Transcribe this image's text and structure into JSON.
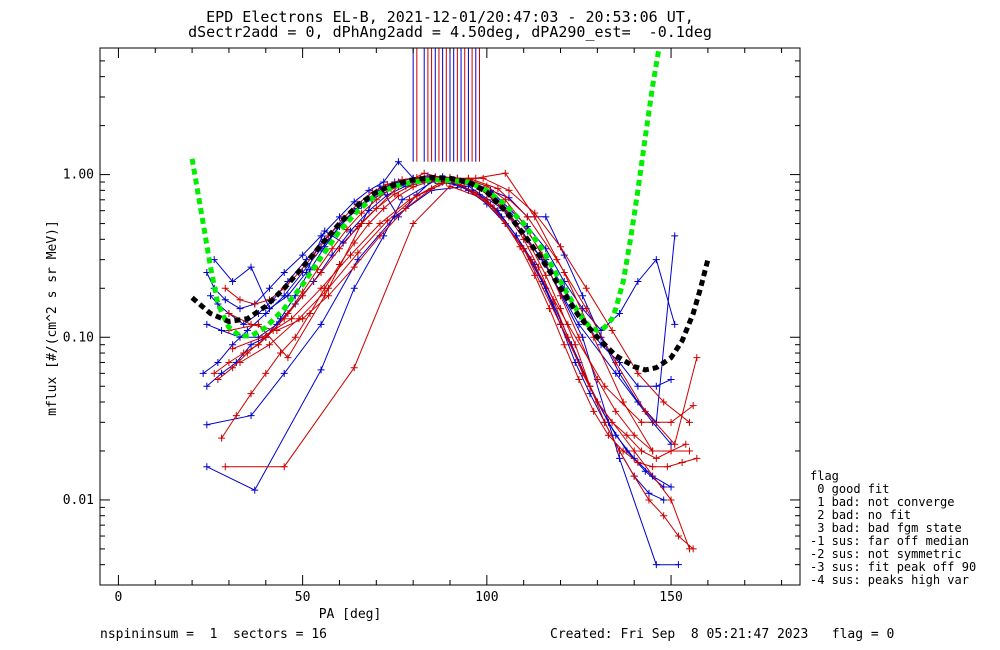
{
  "chart_data": {
    "type": "line",
    "title_lines": [
      "EPD Electrons EL-B, 2021-12-01/20:47:03 - 20:53:06 UT,",
      "dSectr2add = 0, dPhAng2add = 4.50deg, dPA290_est=  -0.1deg"
    ],
    "xlabel": "PA [deg]",
    "ylabel": "mflux [#/(cm^2 s sr MeV)]",
    "xlim": [
      -5,
      185
    ],
    "ylim": [
      0.003,
      6
    ],
    "yscale": "log",
    "x_ticks": [
      0,
      50,
      100,
      150
    ],
    "x_tick_labels": [
      "0",
      "50",
      "100",
      "150"
    ],
    "y_ticks": [
      0.01,
      0.1,
      1.0
    ],
    "y_tick_labels": [
      "0.01",
      "0.10",
      "1.00"
    ],
    "grid": false,
    "colors": {
      "blue": "#0000cc",
      "red": "#cc0000",
      "green": "#00ee00",
      "black": "#000000"
    },
    "vertical_markers": {
      "ymin": 1.2,
      "blue_x": [
        80,
        83,
        86,
        88,
        90,
        91,
        93,
        95,
        97
      ],
      "red_x": [
        81,
        84,
        85,
        87,
        89,
        92,
        94,
        96,
        98
      ]
    },
    "fit_curves": [
      {
        "color": "green",
        "x": [
          20,
          23,
          25,
          27,
          30,
          33,
          36,
          40,
          45,
          50,
          55,
          60,
          65,
          70,
          75,
          80,
          85,
          90,
          95,
          100,
          105,
          110,
          115,
          120,
          125,
          128,
          130,
          132,
          134,
          135,
          137,
          139,
          141,
          143,
          145,
          147
        ],
        "y": [
          1.25,
          0.5,
          0.27,
          0.16,
          0.115,
          0.102,
          0.102,
          0.115,
          0.15,
          0.21,
          0.31,
          0.45,
          0.6,
          0.75,
          0.85,
          0.9,
          0.93,
          0.92,
          0.9,
          0.8,
          0.65,
          0.5,
          0.35,
          0.22,
          0.14,
          0.115,
          0.11,
          0.115,
          0.13,
          0.15,
          0.22,
          0.4,
          0.8,
          1.7,
          3.5,
          6.5
        ]
      },
      {
        "color": "black",
        "x": [
          20,
          25,
          30,
          35,
          40,
          45,
          50,
          55,
          60,
          65,
          70,
          75,
          80,
          85,
          90,
          95,
          100,
          105,
          110,
          115,
          120,
          125,
          130,
          135,
          140,
          143,
          146,
          150,
          153,
          156,
          158,
          160
        ],
        "y": [
          0.175,
          0.14,
          0.125,
          0.13,
          0.155,
          0.2,
          0.27,
          0.37,
          0.5,
          0.65,
          0.78,
          0.87,
          0.93,
          0.96,
          0.95,
          0.9,
          0.78,
          0.6,
          0.43,
          0.3,
          0.2,
          0.135,
          0.1,
          0.077,
          0.066,
          0.063,
          0.065,
          0.075,
          0.095,
          0.14,
          0.2,
          0.3
        ]
      }
    ],
    "series": [
      {
        "color": "blue",
        "x": [
          24,
          26,
          29,
          33,
          37,
          41,
          45,
          50,
          55,
          60,
          64,
          68,
          72,
          76,
          80,
          84,
          88,
          92,
          96,
          101,
          106,
          111,
          116,
          121,
          126,
          131,
          136,
          141,
          146,
          151
        ],
        "y": [
          0.25,
          0.2,
          0.17,
          0.15,
          0.16,
          0.2,
          0.25,
          0.32,
          0.42,
          0.55,
          0.68,
          0.8,
          0.9,
          1.2,
          0.95,
          0.98,
          0.97,
          0.95,
          0.9,
          0.8,
          0.62,
          0.48,
          0.35,
          0.22,
          0.15,
          0.11,
          0.14,
          0.22,
          0.3,
          0.12
        ]
      },
      {
        "color": "blue",
        "x": [
          25,
          27,
          30,
          34,
          38,
          42,
          46,
          51,
          56,
          61,
          66,
          71,
          76,
          81,
          86,
          91,
          96,
          101,
          106,
          111,
          116,
          121,
          126,
          131,
          136,
          141,
          146,
          150
        ],
        "y": [
          0.18,
          0.16,
          0.14,
          0.12,
          0.14,
          0.17,
          0.22,
          0.3,
          0.4,
          0.52,
          0.65,
          0.75,
          0.85,
          0.9,
          0.92,
          0.9,
          0.86,
          0.78,
          0.6,
          0.45,
          0.3,
          0.2,
          0.13,
          0.09,
          0.07,
          0.05,
          0.05,
          0.055
        ]
      },
      {
        "color": "blue",
        "x": [
          24,
          28,
          33,
          38,
          43,
          48,
          53,
          58,
          63,
          68,
          73,
          78,
          83,
          88,
          93,
          98,
          103,
          108,
          113,
          118,
          123,
          128,
          133,
          138,
          143,
          148
        ],
        "y": [
          0.12,
          0.11,
          0.1,
          0.1,
          0.12,
          0.16,
          0.22,
          0.32,
          0.45,
          0.6,
          0.75,
          0.85,
          0.9,
          0.9,
          0.85,
          0.75,
          0.6,
          0.42,
          0.28,
          0.16,
          0.09,
          0.05,
          0.03,
          0.02,
          0.015,
          0.012
        ]
      },
      {
        "color": "blue",
        "x": [
          23,
          27,
          31,
          35,
          40,
          45,
          50,
          55,
          60,
          65,
          70,
          75,
          80,
          85,
          90,
          95,
          100,
          105,
          110,
          115,
          120,
          125,
          130,
          135,
          140,
          145,
          150
        ],
        "y": [
          0.06,
          0.07,
          0.09,
          0.11,
          0.14,
          0.18,
          0.25,
          0.35,
          0.48,
          0.62,
          0.78,
          0.9,
          0.95,
          0.95,
          0.9,
          0.8,
          0.66,
          0.5,
          0.35,
          0.22,
          0.12,
          0.07,
          0.04,
          0.025,
          0.018,
          0.014,
          0.012
        ]
      },
      {
        "color": "blue",
        "x": [
          24,
          28,
          32,
          36,
          40,
          44,
          48,
          52,
          56,
          60,
          64,
          68,
          72,
          76,
          80,
          84,
          88,
          92,
          96,
          100,
          104,
          108,
          112,
          116,
          120,
          124,
          128,
          132,
          136,
          140,
          144,
          148
        ],
        "y": [
          0.05,
          0.06,
          0.07,
          0.09,
          0.1,
          0.13,
          0.18,
          0.26,
          0.36,
          0.48,
          0.6,
          0.72,
          0.82,
          0.9,
          0.92,
          0.92,
          0.9,
          0.86,
          0.8,
          0.7,
          0.55,
          0.42,
          0.3,
          0.2,
          0.12,
          0.07,
          0.045,
          0.03,
          0.02,
          0.014,
          0.011,
          0.01
        ]
      },
      {
        "color": "blue",
        "x": [
          24,
          36,
          45,
          55,
          65,
          75,
          85,
          95,
          105,
          115,
          125,
          135,
          145,
          150
        ],
        "y": [
          0.029,
          0.033,
          0.06,
          0.12,
          0.3,
          0.55,
          0.8,
          0.85,
          0.6,
          0.3,
          0.12,
          0.06,
          0.03,
          0.022
        ]
      },
      {
        "color": "blue",
        "x": [
          24,
          37,
          55,
          64,
          72,
          77,
          86,
          96,
          106,
          116,
          126,
          136,
          146,
          152
        ],
        "y": [
          0.016,
          0.0115,
          0.063,
          0.2,
          0.42,
          0.7,
          0.92,
          0.9,
          0.58,
          0.28,
          0.1,
          0.018,
          0.004,
          0.004
        ]
      },
      {
        "color": "blue",
        "x": [
          26,
          31,
          36,
          41,
          46,
          51,
          56,
          61,
          66,
          71,
          76,
          81,
          86,
          91,
          96,
          101,
          106,
          111,
          116,
          121,
          126,
          131,
          136,
          141,
          146,
          151
        ],
        "y": [
          0.3,
          0.22,
          0.27,
          0.15,
          0.18,
          0.25,
          0.45,
          0.38,
          0.5,
          0.85,
          0.55,
          0.75,
          0.96,
          0.93,
          0.86,
          0.8,
          0.72,
          0.55,
          0.55,
          0.32,
          0.18,
          0.1,
          0.06,
          0.04,
          0.03,
          0.42
        ]
      },
      {
        "color": "red",
        "x": [
          26,
          30,
          34,
          38,
          42,
          46,
          50,
          54,
          58,
          62,
          66,
          70,
          74,
          78,
          82,
          86,
          90,
          94,
          98,
          102,
          106,
          110,
          114,
          118,
          122,
          126,
          130,
          134,
          138,
          142,
          146,
          150,
          154
        ],
        "y": [
          0.06,
          0.07,
          0.08,
          0.09,
          0.11,
          0.14,
          0.19,
          0.26,
          0.35,
          0.46,
          0.58,
          0.7,
          0.82,
          0.9,
          0.95,
          0.97,
          0.95,
          0.9,
          0.82,
          0.7,
          0.55,
          0.4,
          0.27,
          0.17,
          0.1,
          0.06,
          0.04,
          0.03,
          0.025,
          0.02,
          0.018,
          0.02,
          0.022
        ]
      },
      {
        "color": "red",
        "x": [
          27,
          31,
          35,
          40,
          45,
          50,
          55,
          60,
          65,
          70,
          75,
          80,
          85,
          90,
          95,
          100,
          105,
          110,
          115,
          120,
          125,
          130,
          135,
          140,
          145,
          150,
          155
        ],
        "y": [
          0.055,
          0.065,
          0.08,
          0.1,
          0.13,
          0.18,
          0.25,
          0.35,
          0.48,
          0.62,
          0.76,
          0.87,
          0.94,
          0.96,
          0.93,
          0.85,
          0.7,
          0.5,
          0.32,
          0.18,
          0.1,
          0.055,
          0.035,
          0.025,
          0.02,
          0.02,
          0.02
        ]
      },
      {
        "color": "red",
        "x": [
          28,
          32,
          36,
          40,
          44,
          48,
          52,
          56,
          60,
          64,
          68,
          72,
          76,
          80,
          84,
          88,
          92,
          96,
          100,
          104,
          108,
          112,
          116,
          120,
          124,
          128,
          132,
          136,
          140,
          144,
          148,
          152,
          156
        ],
        "y": [
          0.024,
          0.033,
          0.045,
          0.06,
          0.08,
          0.1,
          0.14,
          0.2,
          0.28,
          0.38,
          0.5,
          0.62,
          0.74,
          0.84,
          0.9,
          0.93,
          0.92,
          0.87,
          0.78,
          0.65,
          0.5,
          0.36,
          0.24,
          0.15,
          0.09,
          0.05,
          0.03,
          0.02,
          0.014,
          0.01,
          0.008,
          0.006,
          0.005
        ]
      },
      {
        "color": "red",
        "x": [
          29,
          33,
          37,
          41,
          45,
          49,
          53,
          57,
          61,
          65,
          69,
          73,
          77,
          81,
          85,
          89,
          93,
          97,
          101,
          105,
          109,
          113,
          117,
          121,
          125,
          129,
          133,
          137,
          141,
          145,
          149,
          153,
          157
        ],
        "y": [
          0.2,
          0.17,
          0.16,
          0.17,
          0.2,
          0.25,
          0.32,
          0.42,
          0.54,
          0.66,
          0.78,
          0.87,
          0.93,
          0.96,
          0.95,
          0.92,
          0.86,
          0.77,
          0.65,
          0.5,
          0.36,
          0.24,
          0.15,
          0.09,
          0.055,
          0.035,
          0.025,
          0.02,
          0.017,
          0.016,
          0.016,
          0.017,
          0.018
        ]
      },
      {
        "color": "red",
        "x": [
          29,
          45,
          64,
          80,
          90,
          100,
          110,
          120,
          130,
          140,
          150,
          155
        ],
        "y": [
          0.016,
          0.016,
          0.065,
          0.5,
          0.85,
          0.7,
          0.35,
          0.12,
          0.04,
          0.02,
          0.01,
          0.005
        ]
      },
      {
        "color": "red",
        "x": [
          30,
          38,
          46,
          56,
          66,
          76,
          83,
          92,
          102,
          112,
          122,
          132,
          142,
          150,
          156
        ],
        "y": [
          0.11,
          0.12,
          0.075,
          0.18,
          0.5,
          0.85,
          1.02,
          0.9,
          0.62,
          0.3,
          0.12,
          0.05,
          0.03,
          0.03,
          0.038
        ]
      },
      {
        "color": "red",
        "x": [
          30,
          36,
          43,
          50,
          57,
          64,
          71,
          78,
          85,
          92,
          99,
          106,
          113,
          120,
          127,
          134,
          141,
          148,
          155
        ],
        "y": [
          0.14,
          0.12,
          0.11,
          0.13,
          0.18,
          0.27,
          0.42,
          0.62,
          0.82,
          0.95,
          0.95,
          0.8,
          0.58,
          0.36,
          0.2,
          0.11,
          0.06,
          0.04,
          0.03
        ]
      },
      {
        "color": "red",
        "x": [
          31,
          39,
          47,
          55,
          63,
          71,
          79,
          87,
          95,
          103,
          111,
          119,
          127,
          135,
          143,
          151,
          157
        ],
        "y": [
          0.085,
          0.1,
          0.13,
          0.2,
          0.32,
          0.5,
          0.7,
          0.88,
          0.95,
          0.82,
          0.55,
          0.3,
          0.15,
          0.07,
          0.035,
          0.022,
          0.075
        ]
      },
      {
        "color": "red",
        "x": [
          33,
          41,
          49,
          57,
          65,
          73,
          81,
          89,
          97,
          105,
          113,
          121,
          129,
          137,
          145
        ],
        "y": [
          0.07,
          0.09,
          0.13,
          0.2,
          0.33,
          0.52,
          0.74,
          0.9,
          0.95,
          1.02,
          0.55,
          0.25,
          0.1,
          0.04,
          0.02
        ]
      }
    ]
  },
  "legend": {
    "title": "flag",
    "items": [
      " 0 good fit",
      " 1 bad: not converge",
      " 2 bad: no fit",
      " 3 bad: bad fgm state",
      "-1 sus: far off median",
      "-2 sus: not symmetric",
      "-3 sus: fit peak off 90",
      "-4 sus: peaks high var"
    ]
  },
  "footer": {
    "left": "nspininsum =  1  sectors = 16",
    "right": "Created: Fri Sep  8 05:21:47 2023   flag = 0"
  }
}
